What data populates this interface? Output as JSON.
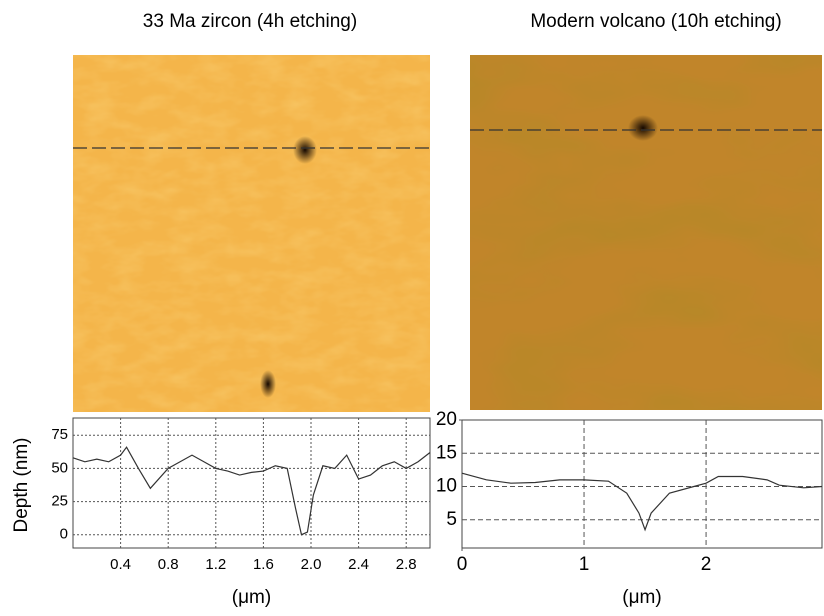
{
  "chart_data": [
    {
      "type": "line",
      "title": "33 Ma zircon (4h etching)",
      "x_label": "(μm)",
      "y_label": "Depth (nm)",
      "x": [
        0,
        0.1,
        0.2,
        0.3,
        0.4,
        0.45,
        0.55,
        0.65,
        0.8,
        0.9,
        1.0,
        1.1,
        1.2,
        1.3,
        1.4,
        1.5,
        1.6,
        1.7,
        1.8,
        1.87,
        1.92,
        1.97,
        2.02,
        2.1,
        2.2,
        2.3,
        2.4,
        2.5,
        2.6,
        2.7,
        2.8,
        2.9,
        3.0
      ],
      "values": [
        58,
        55,
        57,
        55,
        60,
        66,
        50,
        35,
        50,
        55,
        60,
        55,
        50,
        48,
        45,
        47,
        48,
        52,
        50,
        20,
        0,
        2,
        30,
        52,
        50,
        60,
        42,
        45,
        52,
        55,
        50,
        55,
        62
      ],
      "color": "#333333",
      "xlim": [
        0,
        3.0
      ],
      "ylim": [
        -10,
        88
      ],
      "xticks": [
        0.4,
        0.8,
        1.2,
        1.6,
        {
          "value": 2,
          "label": "2.0"
        },
        2.4,
        2.8
      ],
      "yticks": [
        0,
        25,
        50,
        75
      ],
      "grid": true
    },
    {
      "type": "line",
      "title": "Modern volcano (10h etching)",
      "x_label": "(μm)",
      "x": [
        0,
        0.2,
        0.4,
        0.6,
        0.8,
        1.0,
        1.2,
        1.35,
        1.45,
        1.5,
        1.55,
        1.7,
        1.9,
        2.0,
        2.1,
        2.3,
        2.5,
        2.6,
        2.8,
        2.95
      ],
      "values": [
        12,
        11,
        10.5,
        10.6,
        11,
        11,
        10.8,
        9,
        6,
        3.5,
        6,
        9,
        10,
        10.5,
        11.5,
        11.5,
        11,
        10.2,
        9.8,
        10
      ],
      "color": "#333333",
      "xlim": [
        0,
        2.95
      ],
      "ylim": [
        0.75,
        20
      ],
      "xticks": [
        0,
        1,
        2
      ],
      "yticks": [
        5,
        10,
        15,
        20
      ],
      "grid": true
    }
  ]
}
